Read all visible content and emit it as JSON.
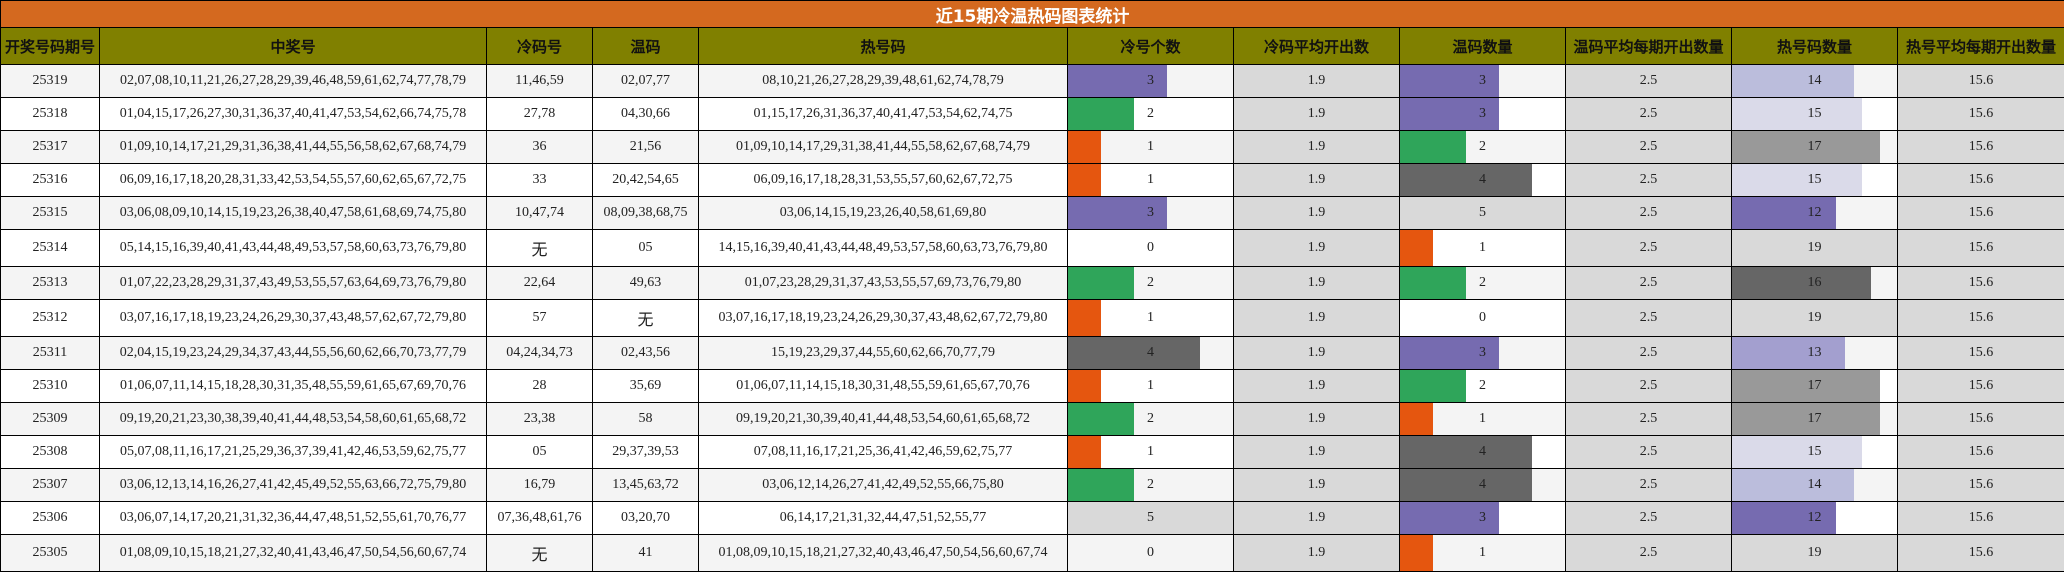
{
  "title": "近15期冷温热码图表统计",
  "headers": [
    "开奖号码期号",
    "中奖号",
    "冷码号",
    "温码",
    "热号码",
    "冷号个数",
    "冷码平均开出数",
    "温码数量",
    "温码平均每期开出数量",
    "热号码数量",
    "热号平均每期开出数量"
  ],
  "colors": {
    "title_bg": "#d4691f",
    "header_bg": "#808000",
    "avg_bg": "#d9d9d9",
    "count_scale": {
      "1": "#e5560f",
      "2": "#2fa55a",
      "3": "#766bb0",
      "4": "#666666",
      "5": "#d9d9d9"
    },
    "hot_scale": {
      "12": "#766bb0",
      "13": "#a39fcf",
      "14": "#bbbddc",
      "15": "#dadae9",
      "16": "#666666",
      "17": "#999999",
      "19": "#d9d9d9"
    }
  },
  "bar_max": {
    "cold": 5,
    "warm": 5,
    "hot": 19
  },
  "rows": [
    {
      "issue": "25319",
      "winning": "02,07,08,10,11,21,26,27,28,29,39,46,48,59,61,62,74,77,78,79",
      "cold": "11,46,59",
      "warm": "02,07,77",
      "hot": "08,10,21,26,27,28,29,39,48,61,62,74,78,79",
      "cold_count": 3,
      "cold_avg": "1.9",
      "warm_count": 3,
      "warm_avg": "2.5",
      "hot_count": 14,
      "hot_avg": "15.6"
    },
    {
      "issue": "25318",
      "winning": "01,04,15,17,26,27,30,31,36,37,40,41,47,53,54,62,66,74,75,78",
      "cold": "27,78",
      "warm": "04,30,66",
      "hot": "01,15,17,26,31,36,37,40,41,47,53,54,62,74,75",
      "cold_count": 2,
      "cold_avg": "1.9",
      "warm_count": 3,
      "warm_avg": "2.5",
      "hot_count": 15,
      "hot_avg": "15.6"
    },
    {
      "issue": "25317",
      "winning": "01,09,10,14,17,21,29,31,36,38,41,44,55,56,58,62,67,68,74,79",
      "cold": "36",
      "warm": "21,56",
      "hot": "01,09,10,14,17,29,31,38,41,44,55,58,62,67,68,74,79",
      "cold_count": 1,
      "cold_avg": "1.9",
      "warm_count": 2,
      "warm_avg": "2.5",
      "hot_count": 17,
      "hot_avg": "15.6"
    },
    {
      "issue": "25316",
      "winning": "06,09,16,17,18,20,28,31,33,42,53,54,55,57,60,62,65,67,72,75",
      "cold": "33",
      "warm": "20,42,54,65",
      "hot": "06,09,16,17,18,28,31,53,55,57,60,62,67,72,75",
      "cold_count": 1,
      "cold_avg": "1.9",
      "warm_count": 4,
      "warm_avg": "2.5",
      "hot_count": 15,
      "hot_avg": "15.6"
    },
    {
      "issue": "25315",
      "winning": "03,06,08,09,10,14,15,19,23,26,38,40,47,58,61,68,69,74,75,80",
      "cold": "10,47,74",
      "warm": "08,09,38,68,75",
      "hot": "03,06,14,15,19,23,26,40,58,61,69,80",
      "cold_count": 3,
      "cold_avg": "1.9",
      "warm_count": 5,
      "warm_avg": "2.5",
      "hot_count": 12,
      "hot_avg": "15.6"
    },
    {
      "issue": "25314",
      "winning": "05,14,15,16,39,40,41,43,44,48,49,53,57,58,60,63,73,76,79,80",
      "cold": "无",
      "warm": "05",
      "hot": "14,15,16,39,40,41,43,44,48,49,53,57,58,60,63,73,76,79,80",
      "cold_count": 0,
      "cold_avg": "1.9",
      "warm_count": 1,
      "warm_avg": "2.5",
      "hot_count": 19,
      "hot_avg": "15.6"
    },
    {
      "issue": "25313",
      "winning": "01,07,22,23,28,29,31,37,43,49,53,55,57,63,64,69,73,76,79,80",
      "cold": "22,64",
      "warm": "49,63",
      "hot": "01,07,23,28,29,31,37,43,53,55,57,69,73,76,79,80",
      "cold_count": 2,
      "cold_avg": "1.9",
      "warm_count": 2,
      "warm_avg": "2.5",
      "hot_count": 16,
      "hot_avg": "15.6"
    },
    {
      "issue": "25312",
      "winning": "03,07,16,17,18,19,23,24,26,29,30,37,43,48,57,62,67,72,79,80",
      "cold": "57",
      "warm": "无",
      "hot": "03,07,16,17,18,19,23,24,26,29,30,37,43,48,62,67,72,79,80",
      "cold_count": 1,
      "cold_avg": "1.9",
      "warm_count": 0,
      "warm_avg": "2.5",
      "hot_count": 19,
      "hot_avg": "15.6"
    },
    {
      "issue": "25311",
      "winning": "02,04,15,19,23,24,29,34,37,43,44,55,56,60,62,66,70,73,77,79",
      "cold": "04,24,34,73",
      "warm": "02,43,56",
      "hot": "15,19,23,29,37,44,55,60,62,66,70,77,79",
      "cold_count": 4,
      "cold_avg": "1.9",
      "warm_count": 3,
      "warm_avg": "2.5",
      "hot_count": 13,
      "hot_avg": "15.6"
    },
    {
      "issue": "25310",
      "winning": "01,06,07,11,14,15,18,28,30,31,35,48,55,59,61,65,67,69,70,76",
      "cold": "28",
      "warm": "35,69",
      "hot": "01,06,07,11,14,15,18,30,31,48,55,59,61,65,67,70,76",
      "cold_count": 1,
      "cold_avg": "1.9",
      "warm_count": 2,
      "warm_avg": "2.5",
      "hot_count": 17,
      "hot_avg": "15.6"
    },
    {
      "issue": "25309",
      "winning": "09,19,20,21,23,30,38,39,40,41,44,48,53,54,58,60,61,65,68,72",
      "cold": "23,38",
      "warm": "58",
      "hot": "09,19,20,21,30,39,40,41,44,48,53,54,60,61,65,68,72",
      "cold_count": 2,
      "cold_avg": "1.9",
      "warm_count": 1,
      "warm_avg": "2.5",
      "hot_count": 17,
      "hot_avg": "15.6"
    },
    {
      "issue": "25308",
      "winning": "05,07,08,11,16,17,21,25,29,36,37,39,41,42,46,53,59,62,75,77",
      "cold": "05",
      "warm": "29,37,39,53",
      "hot": "07,08,11,16,17,21,25,36,41,42,46,59,62,75,77",
      "cold_count": 1,
      "cold_avg": "1.9",
      "warm_count": 4,
      "warm_avg": "2.5",
      "hot_count": 15,
      "hot_avg": "15.6"
    },
    {
      "issue": "25307",
      "winning": "03,06,12,13,14,16,26,27,41,42,45,49,52,55,63,66,72,75,79,80",
      "cold": "16,79",
      "warm": "13,45,63,72",
      "hot": "03,06,12,14,26,27,41,42,49,52,55,66,75,80",
      "cold_count": 2,
      "cold_avg": "1.9",
      "warm_count": 4,
      "warm_avg": "2.5",
      "hot_count": 14,
      "hot_avg": "15.6"
    },
    {
      "issue": "25306",
      "winning": "03,06,07,14,17,20,21,31,32,36,44,47,48,51,52,55,61,70,76,77",
      "cold": "07,36,48,61,76",
      "warm": "03,20,70",
      "hot": "06,14,17,21,31,32,44,47,51,52,55,77",
      "cold_count": 5,
      "cold_avg": "1.9",
      "warm_count": 3,
      "warm_avg": "2.5",
      "hot_count": 12,
      "hot_avg": "15.6"
    },
    {
      "issue": "25305",
      "winning": "01,08,09,10,15,18,21,27,32,40,41,43,46,47,50,54,56,60,67,74",
      "cold": "无",
      "warm": "41",
      "hot": "01,08,09,10,15,18,21,27,32,40,43,46,47,50,54,56,60,67,74",
      "cold_count": 0,
      "cold_avg": "1.9",
      "warm_count": 1,
      "warm_avg": "2.5",
      "hot_count": 19,
      "hot_avg": "15.6"
    }
  ]
}
